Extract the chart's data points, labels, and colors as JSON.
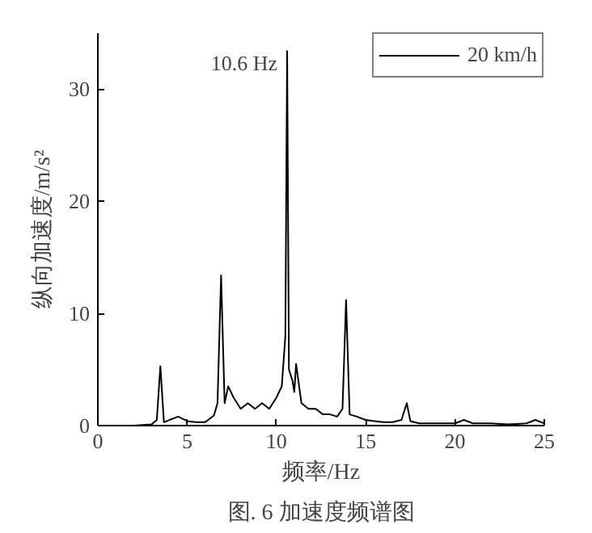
{
  "chart_data": {
    "type": "line",
    "xlabel": "频率/Hz",
    "ylabel": "纵向加速度/m/s²",
    "xlim": [
      0,
      25
    ],
    "ylim": [
      0,
      35
    ],
    "xticks": [
      0,
      5,
      10,
      15,
      20,
      25
    ],
    "yticks": [
      0,
      10,
      20,
      30
    ],
    "grid": false,
    "legend": "top right",
    "marker": "none",
    "line_style": "solid",
    "annotations": [
      {
        "text": "10.6 Hz",
        "x": 10.6,
        "y": 33.4
      },
      "图. 6 加速度频谱图"
    ],
    "x": [
      0,
      1,
      2,
      3,
      3.3,
      3.5,
      3.7,
      4,
      4.5,
      5,
      5.5,
      6,
      6.5,
      6.7,
      6.9,
      7.1,
      7.3,
      7.6,
      8,
      8.4,
      8.8,
      9.2,
      9.6,
      10,
      10.3,
      10.5,
      10.6,
      10.7,
      10.9,
      11.0,
      11.1,
      11.4,
      11.8,
      12.2,
      12.6,
      13,
      13.4,
      13.7,
      13.9,
      14.1,
      14.5,
      15,
      15.5,
      16,
      16.5,
      17,
      17.3,
      17.5,
      18,
      19,
      20,
      20.5,
      21,
      22,
      23,
      24,
      24.5,
      25
    ],
    "series": [
      {
        "name": "20 km/h",
        "color": "#000000",
        "values": [
          0,
          0,
          0,
          0.1,
          0.5,
          5.3,
          0.3,
          0.5,
          0.8,
          0.4,
          0.3,
          0.3,
          0.9,
          2,
          13.4,
          2,
          3.5,
          2.5,
          1.5,
          2,
          1.5,
          2,
          1.5,
          2.5,
          3.5,
          8,
          33.4,
          5,
          4,
          3,
          5.5,
          2,
          1.5,
          1.5,
          1,
          1,
          0.8,
          1.5,
          11.2,
          1,
          0.8,
          0.5,
          0.4,
          0.3,
          0.3,
          0.5,
          2,
          0.4,
          0.2,
          0.2,
          0.2,
          0.5,
          0.2,
          0.2,
          0.1,
          0.2,
          0.5,
          0.2
        ]
      }
    ]
  }
}
